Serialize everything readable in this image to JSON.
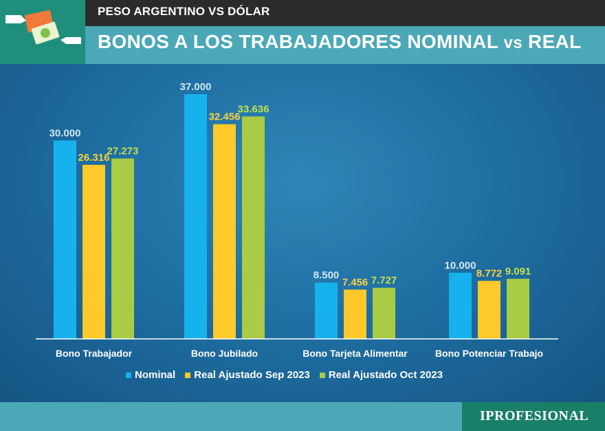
{
  "header": {
    "subtitle": "PESO ARGENTINO VS DÓLAR",
    "title_main": "BONOS A LOS TRABAJADORES NOMINAL ",
    "title_vs": "vs",
    "title_end": " REAL",
    "icon": "money-hands-icon"
  },
  "footer": {
    "brand": "IPROFESIONAL"
  },
  "colors": {
    "nominal": "#17b2ee",
    "sep": "#fdc92b",
    "oct": "#a9cb45",
    "label_nominal": "#cfe7f2",
    "label_sep": "#fdd23a",
    "label_oct": "#c2e04a"
  },
  "chart_data": {
    "type": "bar",
    "title": "BONOS A LOS TRABAJADORES NOMINAL vs REAL",
    "categories": [
      "Bono Trabajador",
      "Bono Jubilado",
      "Bono Tarjeta Alimentar",
      "Bono Potenciar Trabajo"
    ],
    "series": [
      {
        "name": "Nominal",
        "values": [
          30000,
          37000,
          8500,
          10000
        ],
        "labels": [
          "30.000",
          "37.000",
          "8.500",
          "10.000"
        ]
      },
      {
        "name": "Real Ajustado Sep 2023",
        "values": [
          26316,
          32456,
          7456,
          8772
        ],
        "labels": [
          "26.316",
          "32.456",
          "7.456",
          "8.772"
        ]
      },
      {
        "name": "Real Ajustado Oct 2023",
        "values": [
          27273,
          33636,
          7727,
          9091
        ],
        "labels": [
          "27.273",
          "33.636",
          "7.727",
          "9.091"
        ]
      }
    ],
    "ylim": [
      0,
      37000
    ],
    "legend_position": "bottom",
    "grid": false
  }
}
